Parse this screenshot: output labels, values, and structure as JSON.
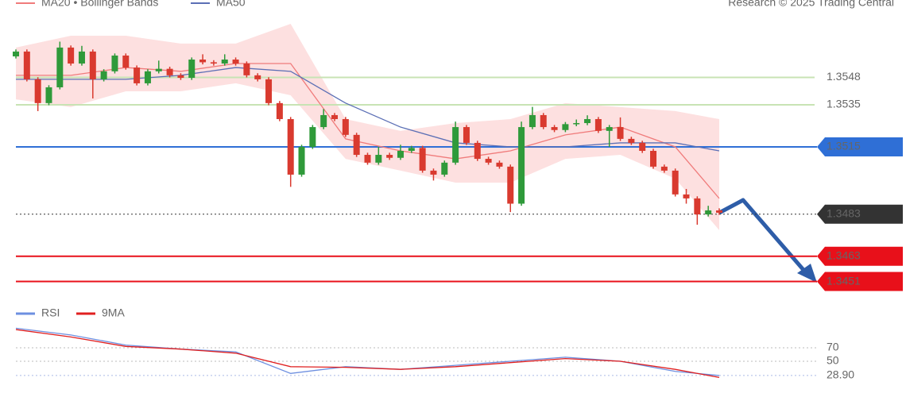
{
  "chart_data": [
    {
      "type": "candlestick",
      "source": "Research © 2025 Trading Central",
      "x": [
        0,
        1,
        2,
        3,
        4,
        5,
        6,
        7,
        8,
        9,
        10,
        11,
        12,
        13,
        14,
        15,
        16,
        17,
        18,
        19,
        20,
        21,
        22,
        23,
        24,
        25,
        26,
        27,
        28,
        29,
        30,
        31,
        32,
        33,
        34,
        35,
        36,
        37,
        38,
        39,
        40,
        41,
        42,
        43,
        44,
        45,
        46,
        47,
        48,
        49,
        50,
        51,
        52,
        53,
        54,
        55,
        56,
        57,
        58,
        59,
        60,
        61,
        62,
        63,
        64
      ],
      "open": [
        1.3558,
        1.35603,
        1.35471,
        1.35358,
        1.35433,
        1.35622,
        1.35546,
        1.35603,
        1.35471,
        1.35509,
        1.35584,
        1.35527,
        1.35452,
        1.35509,
        1.35521,
        1.3549,
        1.35478,
        1.35565,
        1.35552,
        1.35546,
        1.35565,
        1.35546,
        1.3549,
        1.35471,
        1.35358,
        1.35282,
        1.35018,
        1.3515,
        1.35244,
        1.35301,
        1.35282,
        1.35207,
        1.35112,
        1.35075,
        1.35112,
        1.35098,
        1.35131,
        1.35145,
        1.35037,
        1.35018,
        1.35075,
        1.35244,
        1.35169,
        1.35093,
        1.35075,
        1.35056,
        1.3488,
        1.35244,
        1.35301,
        1.35244,
        1.3523,
        1.35258,
        1.35263,
        1.35282,
        1.35226,
        1.35244,
        1.35188,
        1.35169,
        1.35131,
        1.35056,
        1.35037,
        1.34924,
        1.34905,
        1.34829,
        1.34848
      ],
      "high": [
        1.35613,
        1.35613,
        1.35481,
        1.35443,
        1.3565,
        1.35632,
        1.3563,
        1.35613,
        1.35519,
        1.35594,
        1.35594,
        1.35537,
        1.35519,
        1.3556,
        1.35531,
        1.355,
        1.35575,
        1.3559,
        1.35562,
        1.3559,
        1.35575,
        1.35556,
        1.355,
        1.35481,
        1.35368,
        1.35292,
        1.3516,
        1.35254,
        1.3533,
        1.35311,
        1.35292,
        1.35217,
        1.35122,
        1.3515,
        1.35122,
        1.3516,
        1.35155,
        1.35155,
        1.35047,
        1.35085,
        1.3527,
        1.35254,
        1.35179,
        1.35103,
        1.35085,
        1.35066,
        1.3527,
        1.3534,
        1.35311,
        1.35254,
        1.35268,
        1.3528,
        1.353,
        1.35292,
        1.35254,
        1.3529,
        1.35198,
        1.35179,
        1.35141,
        1.35066,
        1.35047,
        1.3495,
        1.34915,
        1.3487,
        1.34858
      ],
      "low": [
        1.3557,
        1.35461,
        1.3532,
        1.35348,
        1.35423,
        1.35536,
        1.35536,
        1.3538,
        1.35461,
        1.35499,
        1.35517,
        1.35442,
        1.35442,
        1.35499,
        1.3548,
        1.35468,
        1.35468,
        1.35542,
        1.35536,
        1.35536,
        1.35536,
        1.3548,
        1.35461,
        1.35348,
        1.35272,
        1.3496,
        1.35008,
        1.3514,
        1.35234,
        1.35272,
        1.35197,
        1.35102,
        1.35065,
        1.35065,
        1.35088,
        1.35088,
        1.35121,
        1.35027,
        1.3499,
        1.35008,
        1.35065,
        1.35159,
        1.35083,
        1.35065,
        1.35046,
        1.3484,
        1.3487,
        1.35234,
        1.35234,
        1.3522,
        1.3522,
        1.35248,
        1.35253,
        1.35216,
        1.3515,
        1.35178,
        1.35159,
        1.35121,
        1.35046,
        1.35027,
        1.34914,
        1.3488,
        1.3478,
        1.34819,
        1.34827
      ],
      "close": [
        1.35603,
        1.35471,
        1.35358,
        1.35433,
        1.35622,
        1.35546,
        1.35603,
        1.35471,
        1.35509,
        1.35584,
        1.35527,
        1.35452,
        1.35509,
        1.35521,
        1.3549,
        1.35478,
        1.35565,
        1.35552,
        1.35546,
        1.35565,
        1.35546,
        1.3549,
        1.35471,
        1.35358,
        1.35282,
        1.35018,
        1.3515,
        1.35244,
        1.35301,
        1.35282,
        1.35207,
        1.35112,
        1.35075,
        1.35112,
        1.35098,
        1.35131,
        1.35145,
        1.35037,
        1.35018,
        1.35075,
        1.35244,
        1.35169,
        1.35093,
        1.35075,
        1.35056,
        1.3488,
        1.35244,
        1.35301,
        1.35244,
        1.3523,
        1.35258,
        1.35263,
        1.35282,
        1.35226,
        1.35244,
        1.35188,
        1.35169,
        1.35131,
        1.35056,
        1.35037,
        1.34924,
        1.34905,
        1.34829,
        1.34848,
        1.34837
      ],
      "up_color": "#2f9a3a",
      "down_color": "#d93a2f",
      "xlim": [
        0,
        64
      ],
      "ylim": [
        1.34414,
        1.35848
      ],
      "indicators": {
        "x": [
          0,
          5,
          10,
          15,
          20,
          25,
          30,
          35,
          40,
          45,
          50,
          55,
          60,
          64
        ],
        "series": [
          {
            "name": "MA20 • Bollinger Bands",
            "color": "#f07b7b",
            "band_color": "#fde0e0",
            "values": [
              1.3549,
              1.3549,
              1.35527,
              1.35509,
              1.35546,
              1.35546,
              1.35188,
              1.35131,
              1.35093,
              1.35131,
              1.35207,
              1.35244,
              1.3515,
              1.34905
            ],
            "upper": [
              1.35622,
              1.35678,
              1.35678,
              1.35641,
              1.35641,
              1.35735,
              1.35282,
              1.35226,
              1.35263,
              1.35282,
              1.35358,
              1.35339,
              1.3532,
              1.35282
            ],
            "lower": [
              1.35376,
              1.35339,
              1.35414,
              1.35414,
              1.35452,
              1.35395,
              1.35093,
              1.35037,
              1.3498,
              1.3498,
              1.35093,
              1.35112,
              1.34999,
              1.34754
            ]
          },
          {
            "name": "MA50",
            "color": "#5b6fb5",
            "values": [
              1.35471,
              1.35471,
              1.35471,
              1.3549,
              1.35527,
              1.35509,
              1.35358,
              1.35244,
              1.35169,
              1.3515,
              1.3515,
              1.35169,
              1.35169,
              1.35131
            ]
          }
        ]
      },
      "levels": [
        {
          "value": 1.3548,
          "color": "#c8e3b4",
          "text_color": "#6aa84f",
          "boxed": false,
          "dashed": false
        },
        {
          "value": 1.3535,
          "color": "#c8e3b4",
          "text_color": "#6aa84f",
          "boxed": false,
          "dashed": false
        },
        {
          "value": 1.3515,
          "color": "#2f6fd6",
          "text_color": "#ffffff",
          "boxed": true,
          "dashed": false
        },
        {
          "value": 1.3483,
          "color": "#333333",
          "text_color": "#ffffff",
          "boxed": true,
          "dashed": true
        },
        {
          "value": 1.3463,
          "color": "#e8101a",
          "text_color": "#ffffff",
          "boxed": true,
          "dashed": false
        },
        {
          "value": 1.3451,
          "color": "#e8101a",
          "text_color": "#ffffff",
          "boxed": true,
          "dashed": false
        }
      ]
    },
    {
      "type": "line",
      "x": [
        0,
        5,
        10,
        15,
        20,
        25,
        30,
        35,
        40,
        45,
        50,
        55,
        60,
        64
      ],
      "xlim": [
        0,
        64
      ],
      "ylim": [
        10,
        100
      ],
      "yticks": [
        70,
        50,
        {
          "value": 28.9,
          "label": "28.90"
        }
      ],
      "series": [
        {
          "name": "RSI",
          "color": "#6d8fe0",
          "values": [
            99,
            89,
            74,
            68,
            64,
            32,
            42,
            38,
            44,
            50,
            56,
            50,
            35,
            28.9
          ]
        },
        {
          "name": "9MA",
          "color": "#e02020",
          "values": [
            97,
            86,
            72,
            68,
            62,
            42,
            41,
            38,
            42,
            48,
            54,
            50,
            38,
            26
          ]
        }
      ]
    }
  ]
}
